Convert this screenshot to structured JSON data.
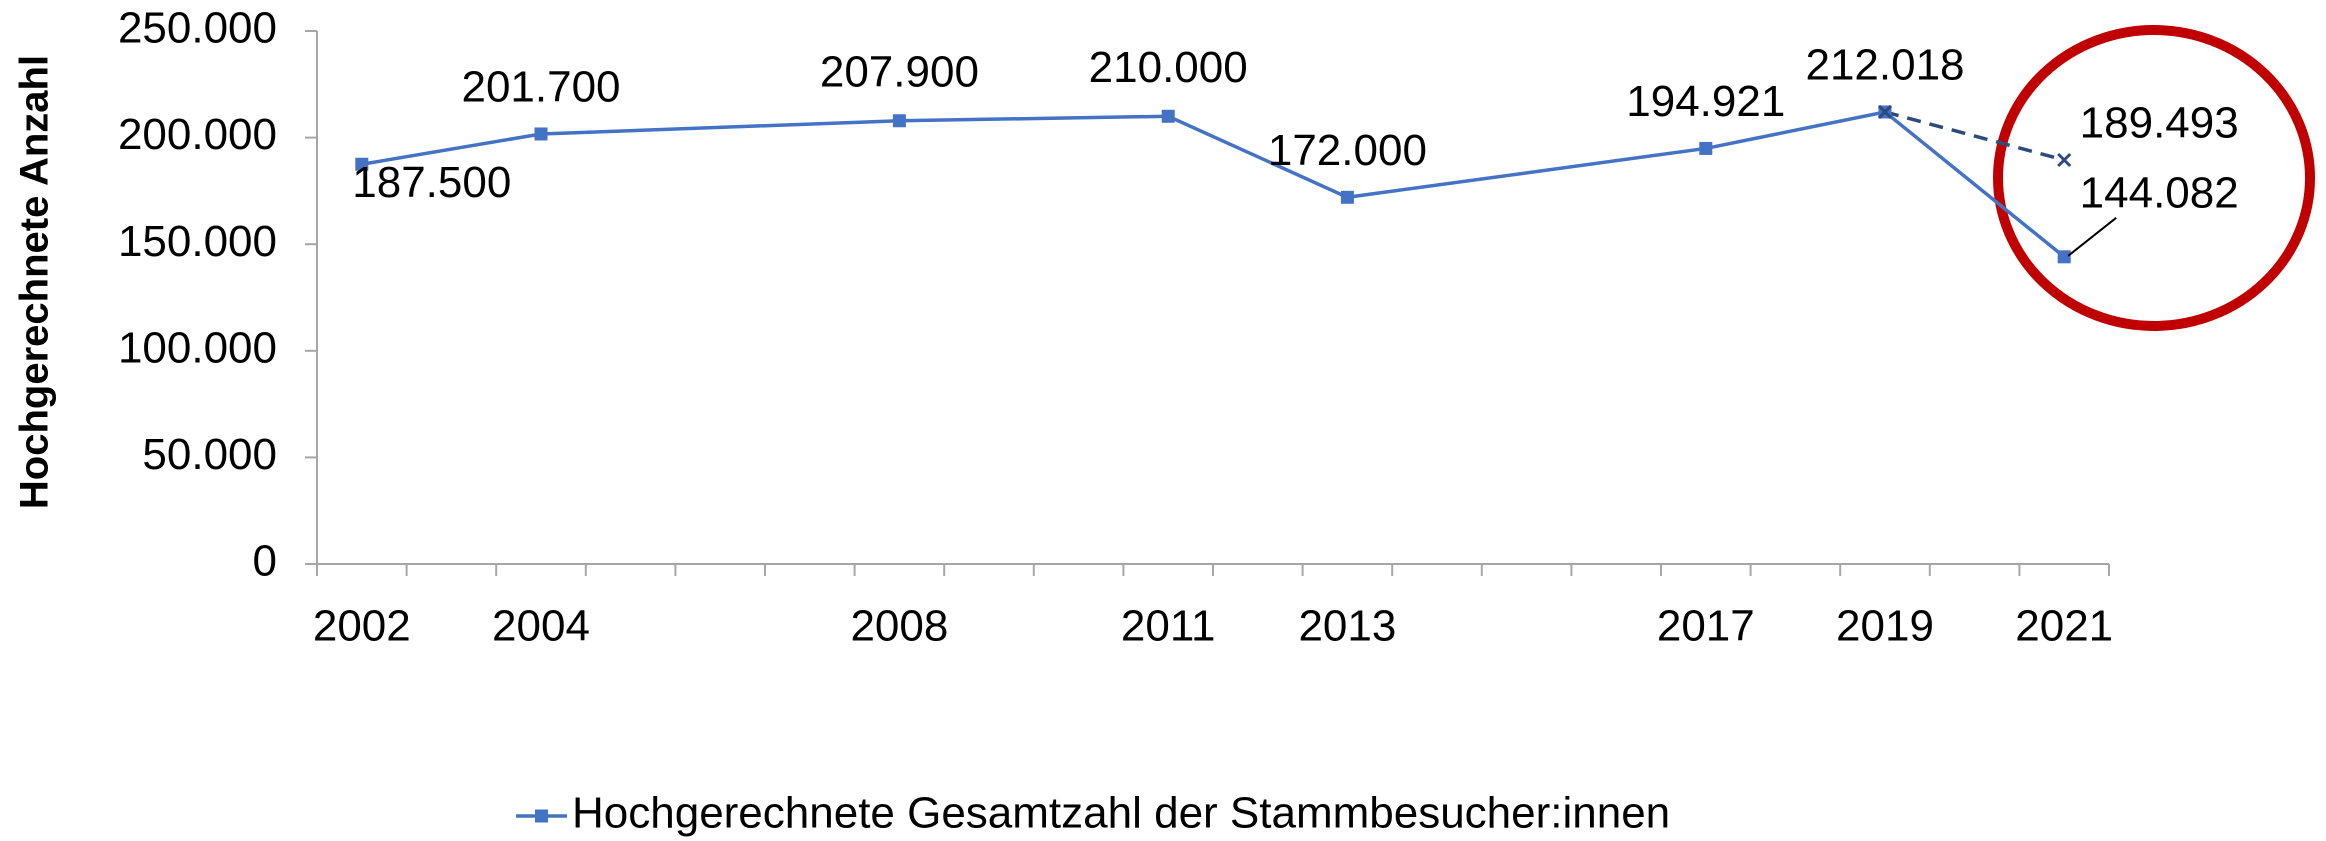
{
  "chart_data": {
    "type": "line",
    "ylabel": "Hochgerechnete Anzahl",
    "x": [
      2002,
      2004,
      2008,
      2011,
      2013,
      2017,
      2019,
      2021
    ],
    "xlim": [
      2001.5,
      2021.5
    ],
    "ylim": [
      0,
      250000
    ],
    "yticks": [
      0,
      {
        "value": 50000,
        "label": "50.000"
      },
      {
        "value": 100000,
        "label": "100.000"
      },
      {
        "value": 150000,
        "label": "150.000"
      },
      {
        "value": 200000,
        "label": "200.000"
      },
      {
        "value": 250000,
        "label": "250.000"
      }
    ],
    "grid": false,
    "legend": "bottom",
    "series": [
      {
        "name": "Hochgerechnete Gesamtzahl der Stammbesucher:innen",
        "color": "#4472c4",
        "marker": "square",
        "dashed": false,
        "values": [
          187500,
          201700,
          207900,
          210000,
          172000,
          194921,
          212018,
          144082
        ],
        "value_labels": [
          "187.500",
          "201.700",
          "207.900",
          "210.000",
          "172.000",
          "194.921",
          "212.018",
          "144.082"
        ]
      },
      {
        "color": "#2e4a7d",
        "marker": "x",
        "dashed": true,
        "values": [
          null,
          null,
          null,
          null,
          null,
          null,
          212018,
          189493
        ],
        "value_labels": [
          null,
          null,
          null,
          null,
          null,
          null,
          null,
          "189.493"
        ]
      }
    ]
  }
}
